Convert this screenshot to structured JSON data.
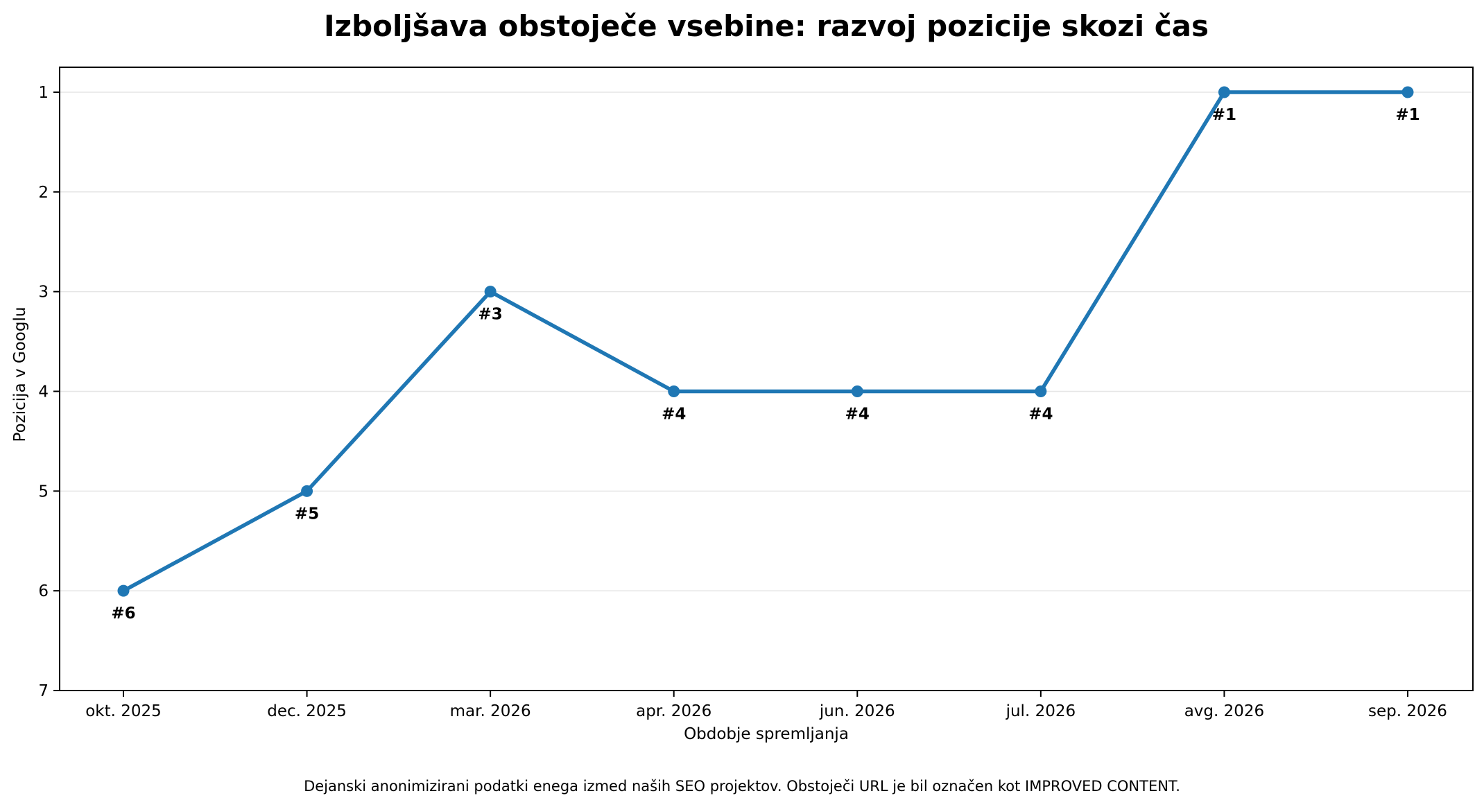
{
  "chart_data": {
    "type": "line",
    "title": "Izboljšava obstoječe vsebine: razvoj pozicije skozi čas",
    "xlabel": "Obdobje spremljanja",
    "ylabel": "Pozicija v Googlu",
    "categories": [
      "okt. 2025",
      "dec. 2025",
      "mar. 2026",
      "apr. 2026",
      "jun. 2026",
      "jul. 2026",
      "avg. 2026",
      "sep. 2026"
    ],
    "values": [
      6,
      5,
      3,
      4,
      4,
      4,
      1,
      1
    ],
    "point_labels": [
      "#6",
      "#5",
      "#3",
      "#4",
      "#4",
      "#4",
      "#1",
      "#1"
    ],
    "ylim": [
      7,
      0.75
    ],
    "y_inverted": true,
    "y_ticks": [
      1,
      2,
      3,
      4,
      5,
      6,
      7
    ],
    "grid": "horizontal",
    "legend": "none",
    "line_color": "#1f77b4",
    "grid_color": "#e6e6e6"
  },
  "footnote": "Dejanski anonimizirani podatki enega izmed naših SEO projektov. Obstoječi URL je bil označen kot IMPROVED CONTENT."
}
